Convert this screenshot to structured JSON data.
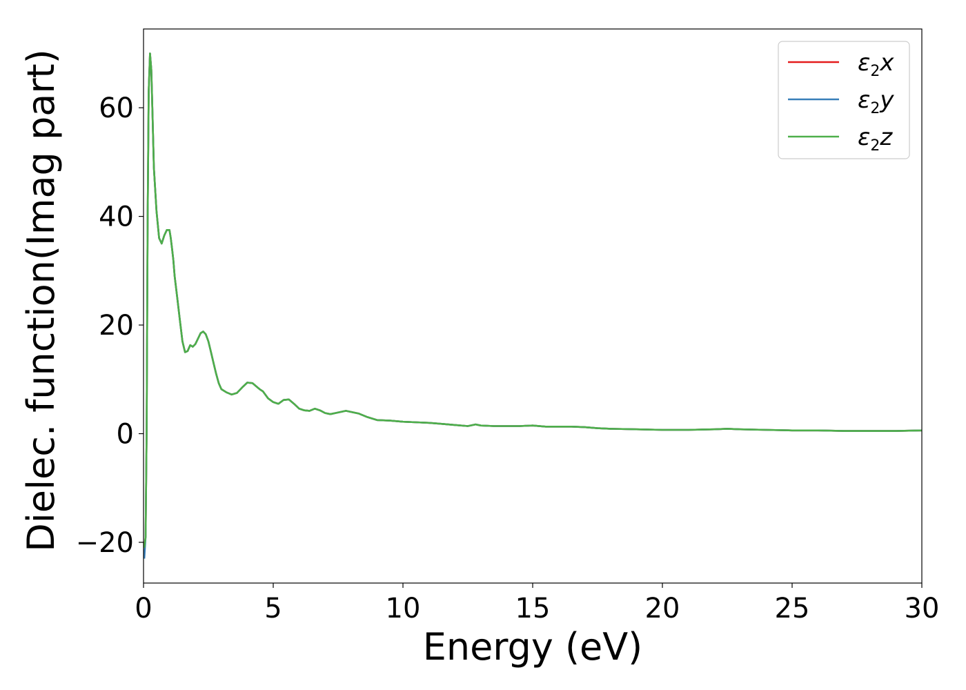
{
  "chart_data": {
    "type": "line",
    "xlabel": "Energy (eV)",
    "ylabel": "Dielec. function(Imag part)",
    "xlim": [
      0,
      30
    ],
    "ylim": [
      -27.5,
      74.5
    ],
    "xticks": [
      0,
      5,
      10,
      15,
      20,
      25,
      30
    ],
    "yticks": [
      -20,
      0,
      20,
      40,
      60
    ],
    "grid": false,
    "legend_position": "top-right",
    "series": [
      {
        "name": "ε2x",
        "legend_base": "ε",
        "legend_sub": "2",
        "legend_var": "x",
        "color": "#e41a1c",
        "x": [
          0.03,
          0.08,
          0.12,
          0.16,
          0.2,
          0.25,
          0.3,
          0.35,
          0.4,
          0.5,
          0.6,
          0.7,
          0.8,
          0.9,
          1.0,
          1.05,
          1.1,
          1.15,
          1.2,
          1.3,
          1.4,
          1.5,
          1.6,
          1.7,
          1.8,
          1.9,
          2.0,
          2.1,
          2.2,
          2.3,
          2.4,
          2.5,
          2.6,
          2.7,
          2.8,
          2.9,
          3.0,
          3.2,
          3.4,
          3.6,
          3.8,
          4.0,
          4.2,
          4.4,
          4.5,
          4.6,
          4.8,
          5.0,
          5.2,
          5.4,
          5.6,
          5.8,
          6.0,
          6.2,
          6.4,
          6.6,
          6.8,
          7.0,
          7.2,
          7.4,
          7.6,
          7.8,
          8.0,
          8.3,
          8.6,
          9.0,
          9.5,
          10.0,
          10.5,
          11.0,
          11.5,
          12.0,
          12.5,
          12.8,
          13.0,
          13.5,
          14.0,
          14.5,
          15.0,
          15.5,
          16.0,
          16.5,
          17.0,
          17.5,
          18.0,
          19.0,
          20.0,
          21.0,
          22.0,
          22.5,
          23.0,
          24.0,
          25.0,
          26.0,
          27.0,
          28.0,
          29.0,
          30.0
        ],
        "y": [
          -21,
          -19,
          0,
          40,
          63,
          70,
          67,
          58,
          49,
          41,
          36,
          35,
          36.5,
          37.5,
          37.5,
          36,
          34,
          32,
          29,
          25,
          21,
          17,
          15,
          15.2,
          16.3,
          16,
          16.5,
          17.5,
          18.5,
          18.8,
          18.3,
          17,
          15,
          13,
          11,
          9.3,
          8.2,
          7.6,
          7.2,
          7.5,
          8.5,
          9.4,
          9.3,
          8.5,
          8.1,
          7.8,
          6.5,
          5.8,
          5.5,
          6.2,
          6.3,
          5.5,
          4.6,
          4.3,
          4.2,
          4.6,
          4.3,
          3.8,
          3.6,
          3.8,
          4.0,
          4.2,
          4.0,
          3.7,
          3.1,
          2.5,
          2.4,
          2.2,
          2.1,
          2.0,
          1.8,
          1.6,
          1.4,
          1.7,
          1.5,
          1.4,
          1.4,
          1.4,
          1.5,
          1.3,
          1.3,
          1.3,
          1.2,
          1.0,
          0.9,
          0.8,
          0.7,
          0.7,
          0.8,
          0.9,
          0.8,
          0.7,
          0.6,
          0.6,
          0.5,
          0.5,
          0.5,
          0.6
        ]
      },
      {
        "name": "ε2y",
        "legend_base": "ε",
        "legend_sub": "2",
        "legend_var": "y",
        "color": "#377eb8",
        "x": [
          0.03,
          0.08,
          0.12,
          0.16,
          0.2,
          0.25,
          0.3,
          0.35,
          0.4,
          0.5,
          0.6,
          0.7,
          0.8,
          0.9,
          1.0,
          1.05,
          1.1,
          1.15,
          1.2,
          1.3,
          1.4,
          1.5,
          1.6,
          1.7,
          1.8,
          1.9,
          2.0,
          2.1,
          2.2,
          2.3,
          2.4,
          2.5,
          2.6,
          2.7,
          2.8,
          2.9,
          3.0,
          3.2,
          3.4,
          3.6,
          3.8,
          4.0,
          4.2,
          4.4,
          4.5,
          4.6,
          4.8,
          5.0,
          5.2,
          5.4,
          5.6,
          5.8,
          6.0,
          6.2,
          6.4,
          6.6,
          6.8,
          7.0,
          7.2,
          7.4,
          7.6,
          7.8,
          8.0,
          8.3,
          8.6,
          9.0,
          9.5,
          10.0,
          10.5,
          11.0,
          11.5,
          12.0,
          12.5,
          12.8,
          13.0,
          13.5,
          14.0,
          14.5,
          15.0,
          15.5,
          16.0,
          16.5,
          17.0,
          17.5,
          18.0,
          19.0,
          20.0,
          21.0,
          22.0,
          22.5,
          23.0,
          24.0,
          25.0,
          26.0,
          27.0,
          28.0,
          29.0,
          30.0
        ],
        "y": [
          -23,
          -19,
          0,
          40,
          63,
          70,
          67,
          58,
          49,
          41,
          36,
          35,
          36.5,
          37.5,
          37.5,
          36,
          34,
          32,
          29,
          25,
          21,
          17,
          15,
          15.2,
          16.3,
          16,
          16.5,
          17.5,
          18.5,
          18.8,
          18.3,
          17,
          15,
          13,
          11,
          9.3,
          8.2,
          7.6,
          7.2,
          7.5,
          8.5,
          9.4,
          9.3,
          8.5,
          8.1,
          7.8,
          6.5,
          5.8,
          5.5,
          6.2,
          6.3,
          5.5,
          4.6,
          4.3,
          4.2,
          4.6,
          4.3,
          3.8,
          3.6,
          3.8,
          4.0,
          4.2,
          4.0,
          3.7,
          3.1,
          2.5,
          2.4,
          2.2,
          2.1,
          2.0,
          1.8,
          1.6,
          1.4,
          1.7,
          1.5,
          1.4,
          1.4,
          1.4,
          1.5,
          1.3,
          1.3,
          1.3,
          1.2,
          1.0,
          0.9,
          0.8,
          0.7,
          0.7,
          0.8,
          0.9,
          0.8,
          0.7,
          0.6,
          0.6,
          0.5,
          0.5,
          0.5,
          0.6
        ]
      },
      {
        "name": "ε2z",
        "legend_base": "ε",
        "legend_sub": "2",
        "legend_var": "z",
        "color": "#4daf4a",
        "x": [
          0.03,
          0.08,
          0.12,
          0.16,
          0.2,
          0.25,
          0.3,
          0.35,
          0.4,
          0.5,
          0.6,
          0.7,
          0.8,
          0.9,
          1.0,
          1.05,
          1.1,
          1.15,
          1.2,
          1.3,
          1.4,
          1.5,
          1.6,
          1.7,
          1.8,
          1.9,
          2.0,
          2.1,
          2.2,
          2.3,
          2.4,
          2.5,
          2.6,
          2.7,
          2.8,
          2.9,
          3.0,
          3.2,
          3.4,
          3.6,
          3.8,
          4.0,
          4.2,
          4.4,
          4.5,
          4.6,
          4.8,
          5.0,
          5.2,
          5.4,
          5.6,
          5.8,
          6.0,
          6.2,
          6.4,
          6.6,
          6.8,
          7.0,
          7.2,
          7.4,
          7.6,
          7.8,
          8.0,
          8.3,
          8.6,
          9.0,
          9.5,
          10.0,
          10.5,
          11.0,
          11.5,
          12.0,
          12.5,
          12.8,
          13.0,
          13.5,
          14.0,
          14.5,
          15.0,
          15.5,
          16.0,
          16.5,
          17.0,
          17.5,
          18.0,
          19.0,
          20.0,
          21.0,
          22.0,
          22.5,
          23.0,
          24.0,
          25.0,
          26.0,
          27.0,
          28.0,
          29.0,
          30.0
        ],
        "y": [
          -21,
          -19,
          0,
          40,
          63,
          70,
          67,
          58,
          49,
          41,
          36,
          35,
          36.5,
          37.5,
          37.5,
          36,
          34,
          32,
          29,
          25,
          21,
          17,
          15,
          15.2,
          16.3,
          16,
          16.5,
          17.5,
          18.5,
          18.8,
          18.3,
          17,
          15,
          13,
          11,
          9.3,
          8.2,
          7.6,
          7.2,
          7.5,
          8.5,
          9.4,
          9.3,
          8.5,
          8.1,
          7.8,
          6.5,
          5.8,
          5.5,
          6.2,
          6.3,
          5.5,
          4.6,
          4.3,
          4.2,
          4.6,
          4.3,
          3.8,
          3.6,
          3.8,
          4.0,
          4.2,
          4.0,
          3.7,
          3.1,
          2.5,
          2.4,
          2.2,
          2.1,
          2.0,
          1.8,
          1.6,
          1.4,
          1.7,
          1.5,
          1.4,
          1.4,
          1.4,
          1.5,
          1.3,
          1.3,
          1.3,
          1.2,
          1.0,
          0.9,
          0.8,
          0.7,
          0.7,
          0.8,
          0.9,
          0.8,
          0.7,
          0.6,
          0.6,
          0.5,
          0.5,
          0.5,
          0.6
        ]
      }
    ]
  }
}
